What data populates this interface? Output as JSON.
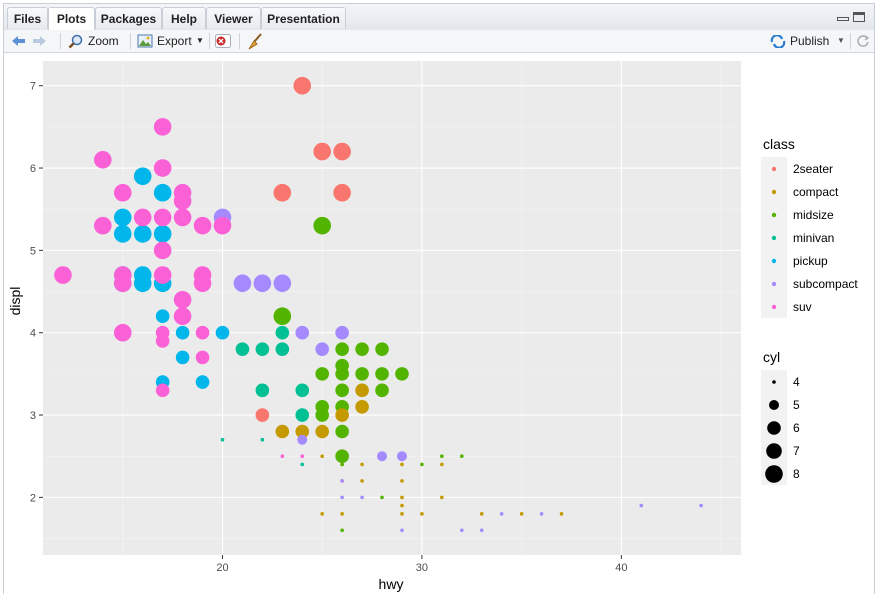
{
  "tabs": [
    {
      "label": "Files"
    },
    {
      "label": "Plots"
    },
    {
      "label": "Packages"
    },
    {
      "label": "Help"
    },
    {
      "label": "Viewer"
    },
    {
      "label": "Presentation"
    }
  ],
  "toolbar": {
    "zoom_label": "Zoom",
    "export_label": "Export",
    "publish_label": "Publish"
  },
  "colors": {
    "2seater": "#F8766D",
    "compact": "#C49A00",
    "midsize": "#53B400",
    "minivan": "#00C094",
    "pickup": "#00B6EB",
    "subcompact": "#A58AFF",
    "suv": "#FB61D7"
  },
  "chart_data": {
    "type": "scatter",
    "xlabel": "hwy",
    "ylabel": "displ",
    "xlim": [
      11,
      46
    ],
    "ylim": [
      1.3,
      7.3
    ],
    "x_ticks": [
      20,
      30,
      40
    ],
    "y_ticks": [
      2,
      3,
      4,
      5,
      6,
      7
    ],
    "grid": true,
    "legend_placement": "right",
    "color_legend": {
      "title": "class",
      "entries": [
        "2seater",
        "compact",
        "midsize",
        "minivan",
        "pickup",
        "subcompact",
        "suv"
      ]
    },
    "size_legend": {
      "title": "cyl",
      "entries": [
        4,
        5,
        6,
        7,
        8
      ]
    },
    "points": [
      {
        "x": 24,
        "y": 7.0,
        "class": "2seater",
        "cyl": 8
      },
      {
        "x": 25,
        "y": 6.2,
        "class": "2seater",
        "cyl": 8
      },
      {
        "x": 26,
        "y": 6.2,
        "class": "2seater",
        "cyl": 8
      },
      {
        "x": 23,
        "y": 5.7,
        "class": "2seater",
        "cyl": 8
      },
      {
        "x": 26,
        "y": 5.7,
        "class": "2seater",
        "cyl": 8
      },
      {
        "x": 22,
        "y": 3.0,
        "class": "2seater",
        "cyl": 6
      },
      {
        "x": 25,
        "y": 5.3,
        "class": "midsize",
        "cyl": 8
      },
      {
        "x": 23,
        "y": 4.2,
        "class": "midsize",
        "cyl": 8
      },
      {
        "x": 26,
        "y": 3.8,
        "class": "midsize",
        "cyl": 6
      },
      {
        "x": 27,
        "y": 3.8,
        "class": "midsize",
        "cyl": 6
      },
      {
        "x": 28,
        "y": 3.8,
        "class": "midsize",
        "cyl": 6
      },
      {
        "x": 26,
        "y": 3.6,
        "class": "midsize",
        "cyl": 6
      },
      {
        "x": 25,
        "y": 3.5,
        "class": "midsize",
        "cyl": 6
      },
      {
        "x": 26,
        "y": 3.5,
        "class": "midsize",
        "cyl": 6
      },
      {
        "x": 27,
        "y": 3.5,
        "class": "midsize",
        "cyl": 6
      },
      {
        "x": 28,
        "y": 3.5,
        "class": "midsize",
        "cyl": 6
      },
      {
        "x": 29,
        "y": 3.5,
        "class": "midsize",
        "cyl": 6
      },
      {
        "x": 26,
        "y": 3.3,
        "class": "midsize",
        "cyl": 6
      },
      {
        "x": 28,
        "y": 3.3,
        "class": "midsize",
        "cyl": 6
      },
      {
        "x": 25,
        "y": 3.1,
        "class": "midsize",
        "cyl": 6
      },
      {
        "x": 26,
        "y": 3.1,
        "class": "midsize",
        "cyl": 6
      },
      {
        "x": 25,
        "y": 3.0,
        "class": "midsize",
        "cyl": 6
      },
      {
        "x": 26,
        "y": 2.8,
        "class": "midsize",
        "cyl": 6
      },
      {
        "x": 26,
        "y": 2.5,
        "class": "midsize",
        "cyl": 6
      },
      {
        "x": 27,
        "y": 3.3,
        "class": "compact",
        "cyl": 6
      },
      {
        "x": 27,
        "y": 3.1,
        "class": "compact",
        "cyl": 6
      },
      {
        "x": 26,
        "y": 3.0,
        "class": "compact",
        "cyl": 6
      },
      {
        "x": 23,
        "y": 2.8,
        "class": "compact",
        "cyl": 6
      },
      {
        "x": 24,
        "y": 2.8,
        "class": "compact",
        "cyl": 6
      },
      {
        "x": 25,
        "y": 2.8,
        "class": "compact",
        "cyl": 6
      },
      {
        "x": 24,
        "y": 4.0,
        "class": "subcompact",
        "cyl": 6
      },
      {
        "x": 26,
        "y": 4.0,
        "class": "subcompact",
        "cyl": 6
      },
      {
        "x": 25,
        "y": 3.8,
        "class": "subcompact",
        "cyl": 6
      },
      {
        "x": 21,
        "y": 4.6,
        "class": "subcompact",
        "cyl": 8
      },
      {
        "x": 22,
        "y": 4.6,
        "class": "subcompact",
        "cyl": 8
      },
      {
        "x": 23,
        "y": 4.6,
        "class": "subcompact",
        "cyl": 8
      },
      {
        "x": 20,
        "y": 5.4,
        "class": "subcompact",
        "cyl": 8
      },
      {
        "x": 24,
        "y": 2.7,
        "class": "subcompact",
        "cyl": 5
      },
      {
        "x": 28,
        "y": 2.5,
        "class": "subcompact",
        "cyl": 5
      },
      {
        "x": 29,
        "y": 2.5,
        "class": "subcompact",
        "cyl": 5
      },
      {
        "x": 21,
        "y": 3.8,
        "class": "minivan",
        "cyl": 6
      },
      {
        "x": 22,
        "y": 3.8,
        "class": "minivan",
        "cyl": 6
      },
      {
        "x": 23,
        "y": 3.8,
        "class": "minivan",
        "cyl": 6
      },
      {
        "x": 23,
        "y": 4.0,
        "class": "minivan",
        "cyl": 6
      },
      {
        "x": 22,
        "y": 3.3,
        "class": "minivan",
        "cyl": 6
      },
      {
        "x": 24,
        "y": 3.3,
        "class": "minivan",
        "cyl": 6
      },
      {
        "x": 24,
        "y": 3.0,
        "class": "minivan",
        "cyl": 6
      },
      {
        "x": 20,
        "y": 2.7,
        "class": "minivan",
        "cyl": 4
      },
      {
        "x": 22,
        "y": 2.7,
        "class": "minivan",
        "cyl": 4
      },
      {
        "x": 24,
        "y": 2.4,
        "class": "minivan",
        "cyl": 4
      },
      {
        "x": 16,
        "y": 5.9,
        "class": "pickup",
        "cyl": 8
      },
      {
        "x": 17,
        "y": 5.7,
        "class": "pickup",
        "cyl": 8
      },
      {
        "x": 15,
        "y": 5.4,
        "class": "pickup",
        "cyl": 8
      },
      {
        "x": 15,
        "y": 5.2,
        "class": "pickup",
        "cyl": 8
      },
      {
        "x": 16,
        "y": 5.2,
        "class": "pickup",
        "cyl": 8
      },
      {
        "x": 17,
        "y": 5.2,
        "class": "pickup",
        "cyl": 8
      },
      {
        "x": 15,
        "y": 4.7,
        "class": "pickup",
        "cyl": 8
      },
      {
        "x": 16,
        "y": 4.7,
        "class": "pickup",
        "cyl": 8
      },
      {
        "x": 15,
        "y": 4.6,
        "class": "pickup",
        "cyl": 8
      },
      {
        "x": 16,
        "y": 4.6,
        "class": "pickup",
        "cyl": 8
      },
      {
        "x": 17,
        "y": 4.6,
        "class": "pickup",
        "cyl": 8
      },
      {
        "x": 17,
        "y": 4.2,
        "class": "pickup",
        "cyl": 6
      },
      {
        "x": 18,
        "y": 4.0,
        "class": "pickup",
        "cyl": 6
      },
      {
        "x": 20,
        "y": 4.0,
        "class": "pickup",
        "cyl": 6
      },
      {
        "x": 18,
        "y": 3.7,
        "class": "pickup",
        "cyl": 6
      },
      {
        "x": 17,
        "y": 3.4,
        "class": "pickup",
        "cyl": 6
      },
      {
        "x": 19,
        "y": 3.4,
        "class": "pickup",
        "cyl": 6
      },
      {
        "x": 17,
        "y": 6.5,
        "class": "suv",
        "cyl": 8
      },
      {
        "x": 14,
        "y": 6.1,
        "class": "suv",
        "cyl": 8
      },
      {
        "x": 17,
        "y": 6.0,
        "class": "suv",
        "cyl": 8
      },
      {
        "x": 15,
        "y": 5.7,
        "class": "suv",
        "cyl": 8
      },
      {
        "x": 18,
        "y": 5.7,
        "class": "suv",
        "cyl": 8
      },
      {
        "x": 18,
        "y": 5.6,
        "class": "suv",
        "cyl": 8
      },
      {
        "x": 16,
        "y": 5.4,
        "class": "suv",
        "cyl": 8
      },
      {
        "x": 17,
        "y": 5.4,
        "class": "suv",
        "cyl": 8
      },
      {
        "x": 18,
        "y": 5.4,
        "class": "suv",
        "cyl": 8
      },
      {
        "x": 14,
        "y": 5.3,
        "class": "suv",
        "cyl": 8
      },
      {
        "x": 19,
        "y": 5.3,
        "class": "suv",
        "cyl": 8
      },
      {
        "x": 20,
        "y": 5.3,
        "class": "suv",
        "cyl": 8
      },
      {
        "x": 17,
        "y": 5.0,
        "class": "suv",
        "cyl": 8
      },
      {
        "x": 12,
        "y": 4.7,
        "class": "suv",
        "cyl": 8
      },
      {
        "x": 15,
        "y": 4.7,
        "class": "suv",
        "cyl": 8
      },
      {
        "x": 17,
        "y": 4.7,
        "class": "suv",
        "cyl": 8
      },
      {
        "x": 19,
        "y": 4.7,
        "class": "suv",
        "cyl": 8
      },
      {
        "x": 15,
        "y": 4.6,
        "class": "suv",
        "cyl": 8
      },
      {
        "x": 19,
        "y": 4.6,
        "class": "suv",
        "cyl": 8
      },
      {
        "x": 18,
        "y": 4.4,
        "class": "suv",
        "cyl": 8
      },
      {
        "x": 18,
        "y": 4.2,
        "class": "suv",
        "cyl": 8
      },
      {
        "x": 15,
        "y": 4.0,
        "class": "suv",
        "cyl": 8
      },
      {
        "x": 17,
        "y": 4.0,
        "class": "suv",
        "cyl": 6
      },
      {
        "x": 19,
        "y": 4.0,
        "class": "suv",
        "cyl": 6
      },
      {
        "x": 17,
        "y": 3.9,
        "class": "suv",
        "cyl": 6
      },
      {
        "x": 19,
        "y": 3.7,
        "class": "suv",
        "cyl": 6
      },
      {
        "x": 17,
        "y": 3.3,
        "class": "suv",
        "cyl": 6
      },
      {
        "x": 23,
        "y": 2.5,
        "class": "suv",
        "cyl": 4
      },
      {
        "x": 24,
        "y": 2.5,
        "class": "suv",
        "cyl": 4
      },
      {
        "x": 25,
        "y": 2.5,
        "class": "compact",
        "cyl": 4
      },
      {
        "x": 26,
        "y": 2.4,
        "class": "compact",
        "cyl": 4
      },
      {
        "x": 27,
        "y": 2.4,
        "class": "compact",
        "cyl": 4
      },
      {
        "x": 29,
        "y": 2.4,
        "class": "compact",
        "cyl": 4
      },
      {
        "x": 31,
        "y": 2.4,
        "class": "compact",
        "cyl": 4
      },
      {
        "x": 26,
        "y": 2.2,
        "class": "compact",
        "cyl": 4
      },
      {
        "x": 27,
        "y": 2.2,
        "class": "compact",
        "cyl": 4
      },
      {
        "x": 29,
        "y": 2.2,
        "class": "compact",
        "cyl": 4
      },
      {
        "x": 29,
        "y": 2.0,
        "class": "compact",
        "cyl": 4
      },
      {
        "x": 31,
        "y": 2.0,
        "class": "compact",
        "cyl": 4
      },
      {
        "x": 29,
        "y": 1.9,
        "class": "compact",
        "cyl": 4
      },
      {
        "x": 25,
        "y": 1.8,
        "class": "compact",
        "cyl": 4
      },
      {
        "x": 26,
        "y": 1.8,
        "class": "compact",
        "cyl": 4
      },
      {
        "x": 29,
        "y": 1.8,
        "class": "compact",
        "cyl": 4
      },
      {
        "x": 30,
        "y": 1.8,
        "class": "compact",
        "cyl": 4
      },
      {
        "x": 33,
        "y": 1.8,
        "class": "compact",
        "cyl": 4
      },
      {
        "x": 35,
        "y": 1.8,
        "class": "compact",
        "cyl": 4
      },
      {
        "x": 37,
        "y": 1.8,
        "class": "compact",
        "cyl": 4
      },
      {
        "x": 26,
        "y": 2.5,
        "class": "midsize",
        "cyl": 4
      },
      {
        "x": 26,
        "y": 2.4,
        "class": "midsize",
        "cyl": 4
      },
      {
        "x": 30,
        "y": 2.4,
        "class": "midsize",
        "cyl": 4
      },
      {
        "x": 31,
        "y": 2.5,
        "class": "midsize",
        "cyl": 4
      },
      {
        "x": 32,
        "y": 2.5,
        "class": "midsize",
        "cyl": 4
      },
      {
        "x": 28,
        "y": 2.0,
        "class": "midsize",
        "cyl": 4
      },
      {
        "x": 26,
        "y": 1.6,
        "class": "midsize",
        "cyl": 4
      },
      {
        "x": 26,
        "y": 2.2,
        "class": "subcompact",
        "cyl": 4
      },
      {
        "x": 26,
        "y": 2.0,
        "class": "subcompact",
        "cyl": 4
      },
      {
        "x": 27,
        "y": 2.0,
        "class": "subcompact",
        "cyl": 4
      },
      {
        "x": 29,
        "y": 1.6,
        "class": "subcompact",
        "cyl": 4
      },
      {
        "x": 32,
        "y": 1.6,
        "class": "subcompact",
        "cyl": 4
      },
      {
        "x": 33,
        "y": 1.6,
        "class": "subcompact",
        "cyl": 4
      },
      {
        "x": 34,
        "y": 1.8,
        "class": "subcompact",
        "cyl": 4
      },
      {
        "x": 36,
        "y": 1.8,
        "class": "subcompact",
        "cyl": 4
      },
      {
        "x": 41,
        "y": 1.9,
        "class": "subcompact",
        "cyl": 4
      },
      {
        "x": 44,
        "y": 1.9,
        "class": "subcompact",
        "cyl": 4
      }
    ]
  }
}
